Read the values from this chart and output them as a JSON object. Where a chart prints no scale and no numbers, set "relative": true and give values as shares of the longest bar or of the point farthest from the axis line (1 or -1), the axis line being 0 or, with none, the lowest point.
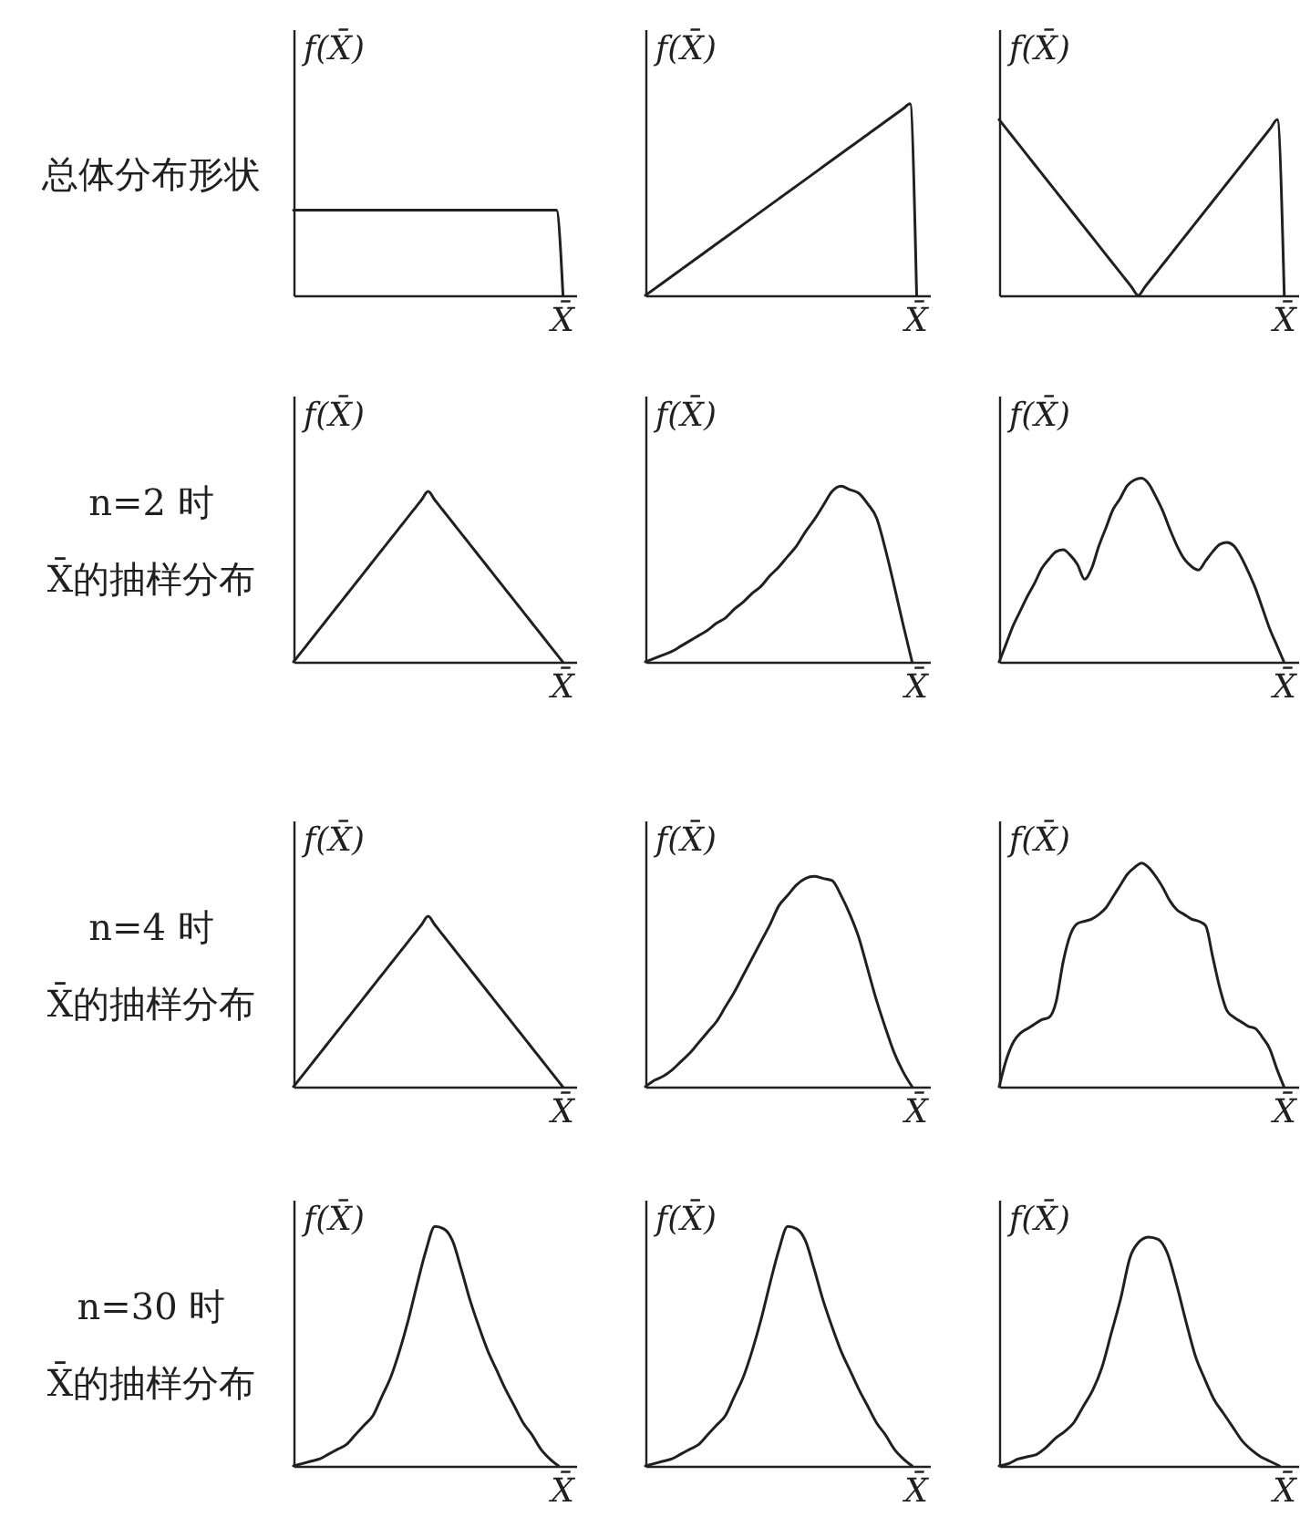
{
  "chart_data": [
    {
      "type": "line",
      "relative": true,
      "categories": [
        null,
        null,
        null,
        null,
        null,
        null,
        null,
        null,
        null,
        null,
        null,
        null,
        null,
        null,
        null,
        null,
        null,
        null,
        null,
        null,
        null,
        null,
        null,
        null,
        null,
        null,
        null,
        null,
        null,
        null,
        null,
        null,
        null,
        null,
        null,
        null,
        null,
        null,
        null,
        null,
        null,
        null
      ],
      "values": [
        1,
        1,
        1,
        1,
        1,
        1,
        1,
        1,
        1,
        1,
        1,
        1,
        1,
        1,
        1,
        1,
        1,
        1,
        1,
        1,
        1,
        1,
        1,
        1,
        1,
        1,
        1,
        1,
        1,
        1,
        1,
        1,
        1,
        1,
        1,
        1,
        1,
        1,
        1,
        1,
        1,
        0
      ],
      "color": "#231f20",
      "ylabel": "f(X̄)",
      "xlabel": "X̄",
      "tick_labels": false,
      "annotations": [
        "总体分布形状"
      ]
    },
    {
      "type": "line",
      "relative": true,
      "categories": [
        null,
        null,
        null,
        null,
        null,
        null,
        null,
        null,
        null,
        null,
        null,
        null,
        null,
        null,
        null,
        null,
        null,
        null,
        null,
        null,
        null,
        null,
        null,
        null,
        null,
        null,
        null,
        null,
        null,
        null,
        null,
        null,
        null,
        null,
        null,
        null,
        null,
        null,
        null,
        null,
        null,
        null
      ],
      "values": [
        0,
        0.025,
        0.05,
        0.075,
        0.1,
        0.125,
        0.15,
        0.175,
        0.2,
        0.225,
        0.25,
        0.275,
        0.3,
        0.325,
        0.35,
        0.375,
        0.4,
        0.425,
        0.45,
        0.475,
        0.5,
        0.525,
        0.55,
        0.575,
        0.6,
        0.625,
        0.65,
        0.675,
        0.7,
        0.725,
        0.75,
        0.775,
        0.8,
        0.825,
        0.85,
        0.875,
        0.9,
        0.925,
        0.95,
        0.975,
        1,
        0
      ],
      "color": "#231f20",
      "ylabel": "f(X̄)",
      "xlabel": "X̄",
      "tick_labels": false
    },
    {
      "type": "line",
      "relative": true,
      "categories": [
        null,
        null,
        null,
        null,
        null,
        null,
        null,
        null,
        null,
        null,
        null,
        null,
        null,
        null,
        null,
        null,
        null,
        null,
        null,
        null,
        null,
        null,
        null,
        null,
        null,
        null,
        null,
        null,
        null,
        null,
        null,
        null,
        null,
        null,
        null,
        null,
        null,
        null,
        null,
        null,
        null,
        null
      ],
      "values": [
        1,
        0.95,
        0.9,
        0.85,
        0.8,
        0.75,
        0.7,
        0.65,
        0.6,
        0.55,
        0.5,
        0.45,
        0.4,
        0.35,
        0.3,
        0.25,
        0.2,
        0.15,
        0.1,
        0.05,
        0,
        0.05,
        0.1,
        0.15,
        0.2,
        0.25,
        0.3,
        0.35,
        0.4,
        0.45,
        0.5,
        0.55,
        0.6,
        0.65,
        0.7,
        0.75,
        0.8,
        0.85,
        0.9,
        0.95,
        1,
        0
      ],
      "color": "#231f20",
      "ylabel": "f(X̄)",
      "xlabel": "X̄",
      "tick_labels": false
    },
    {
      "type": "line",
      "relative": true,
      "categories": [
        null,
        null,
        null,
        null,
        null,
        null,
        null,
        null,
        null,
        null,
        null,
        null,
        null,
        null,
        null,
        null,
        null,
        null,
        null,
        null,
        null,
        null,
        null,
        null,
        null,
        null,
        null,
        null,
        null,
        null,
        null,
        null,
        null,
        null,
        null,
        null,
        null,
        null,
        null,
        null,
        null
      ],
      "values": [
        0,
        0.05,
        0.1,
        0.15,
        0.2,
        0.25,
        0.3,
        0.35,
        0.4,
        0.45,
        0.5,
        0.55,
        0.6,
        0.65,
        0.7,
        0.75,
        0.8,
        0.85,
        0.9,
        0.95,
        1,
        0.95,
        0.9,
        0.85,
        0.8,
        0.75,
        0.7,
        0.65,
        0.6,
        0.55,
        0.5,
        0.45,
        0.4,
        0.35,
        0.3,
        0.25,
        0.2,
        0.15,
        0.1,
        0.05,
        0
      ],
      "color": "#231f20",
      "ylabel": "f(X̄)",
      "xlabel": "X̄",
      "tick_labels": false,
      "annotations": [
        "n=2 时",
        "X̄的抽样分布"
      ]
    },
    {
      "type": "line",
      "relative": true,
      "categories": [
        null,
        null,
        null,
        null,
        null,
        null,
        null,
        null,
        null,
        null,
        null,
        null,
        null,
        null,
        null,
        null,
        null,
        null,
        null,
        null,
        null,
        null,
        null,
        null,
        null,
        null,
        null,
        null,
        null,
        null,
        null
      ],
      "values": [
        0,
        0.02,
        0.04,
        0.06,
        0.09,
        0.12,
        0.15,
        0.18,
        0.22,
        0.25,
        0.3,
        0.34,
        0.39,
        0.43,
        0.49,
        0.54,
        0.6,
        0.66,
        0.74,
        0.81,
        0.89,
        0.97,
        1,
        0.98,
        0.96,
        0.9,
        0.82,
        0.64,
        0.43,
        0.21,
        0
      ],
      "color": "#231f20",
      "ylabel": "f(X̄)",
      "xlabel": "X̄",
      "tick_labels": false
    },
    {
      "type": "line",
      "relative": true,
      "categories": [
        null,
        null,
        null,
        null,
        null,
        null,
        null,
        null,
        null,
        null,
        null,
        null,
        null,
        null,
        null,
        null,
        null,
        null,
        null,
        null,
        null,
        null,
        null,
        null,
        null,
        null,
        null,
        null,
        null,
        null,
        null,
        null,
        null,
        null,
        null,
        null,
        null,
        null,
        null,
        null,
        null
      ],
      "values": [
        0,
        0.1,
        0.2,
        0.28,
        0.36,
        0.43,
        0.51,
        0.56,
        0.6,
        0.61,
        0.58,
        0.53,
        0.45,
        0.51,
        0.63,
        0.73,
        0.83,
        0.89,
        0.96,
        0.99,
        1,
        0.97,
        0.9,
        0.82,
        0.72,
        0.63,
        0.56,
        0.52,
        0.5,
        0.55,
        0.6,
        0.64,
        0.65,
        0.63,
        0.57,
        0.49,
        0.4,
        0.29,
        0.18,
        0.09,
        0
      ],
      "color": "#231f20",
      "ylabel": "f(X̄)",
      "xlabel": "X̄",
      "tick_labels": false
    },
    {
      "type": "line",
      "relative": true,
      "categories": [
        null,
        null,
        null,
        null,
        null,
        null,
        null,
        null,
        null,
        null,
        null,
        null,
        null,
        null,
        null,
        null,
        null,
        null,
        null,
        null,
        null,
        null,
        null,
        null,
        null,
        null,
        null,
        null,
        null,
        null,
        null,
        null,
        null,
        null,
        null,
        null,
        null,
        null,
        null,
        null,
        null
      ],
      "values": [
        0,
        0.05,
        0.1,
        0.15,
        0.2,
        0.25,
        0.3,
        0.35,
        0.4,
        0.45,
        0.5,
        0.55,
        0.6,
        0.65,
        0.7,
        0.75,
        0.8,
        0.85,
        0.9,
        0.95,
        1,
        0.95,
        0.9,
        0.85,
        0.8,
        0.75,
        0.7,
        0.65,
        0.6,
        0.55,
        0.5,
        0.45,
        0.4,
        0.35,
        0.3,
        0.25,
        0.2,
        0.15,
        0.1,
        0.05,
        0
      ],
      "color": "#231f20",
      "ylabel": "f(X̄)",
      "xlabel": "X̄",
      "tick_labels": false,
      "annotations": [
        "n=4 时",
        "X̄的抽样分布"
      ]
    },
    {
      "type": "line",
      "relative": true,
      "categories": [
        null,
        null,
        null,
        null,
        null,
        null,
        null,
        null,
        null,
        null,
        null,
        null,
        null,
        null,
        null,
        null,
        null,
        null,
        null,
        null,
        null,
        null,
        null,
        null,
        null,
        null,
        null,
        null,
        null,
        null,
        null
      ],
      "values": [
        0,
        0.03,
        0.05,
        0.08,
        0.12,
        0.16,
        0.21,
        0.26,
        0.31,
        0.38,
        0.45,
        0.53,
        0.61,
        0.69,
        0.77,
        0.86,
        0.91,
        0.96,
        0.99,
        1,
        0.99,
        0.98,
        0.91,
        0.82,
        0.71,
        0.56,
        0.41,
        0.28,
        0.16,
        0.07,
        0
      ],
      "color": "#231f20",
      "ylabel": "f(X̄)",
      "xlabel": "X̄",
      "tick_labels": false
    },
    {
      "type": "line",
      "relative": true,
      "categories": [
        null,
        null,
        null,
        null,
        null,
        null,
        null,
        null,
        null,
        null,
        null,
        null,
        null,
        null,
        null,
        null,
        null,
        null,
        null,
        null,
        null,
        null,
        null,
        null,
        null,
        null,
        null,
        null,
        null,
        null,
        null,
        null,
        null,
        null,
        null,
        null,
        null,
        null,
        null,
        null,
        null
      ],
      "values": [
        0,
        0.12,
        0.2,
        0.24,
        0.26,
        0.28,
        0.3,
        0.31,
        0.38,
        0.56,
        0.68,
        0.73,
        0.74,
        0.75,
        0.77,
        0.8,
        0.85,
        0.9,
        0.95,
        0.98,
        1,
        0.98,
        0.94,
        0.89,
        0.83,
        0.79,
        0.77,
        0.75,
        0.74,
        0.72,
        0.58,
        0.44,
        0.34,
        0.31,
        0.29,
        0.27,
        0.26,
        0.22,
        0.17,
        0.08,
        0
      ],
      "color": "#231f20",
      "ylabel": "f(X̄)",
      "xlabel": "X̄",
      "tick_labels": false
    },
    {
      "type": "line",
      "relative": true,
      "categories": [
        null,
        null,
        null,
        null,
        null,
        null,
        null,
        null,
        null,
        null,
        null,
        null,
        null,
        null,
        null,
        null,
        null,
        null,
        null,
        null,
        null,
        null,
        null,
        null,
        null,
        null,
        null,
        null,
        null,
        null,
        null
      ],
      "values": [
        0,
        0.01,
        0.02,
        0.03,
        0.05,
        0.07,
        0.09,
        0.13,
        0.17,
        0.21,
        0.29,
        0.37,
        0.48,
        0.61,
        0.76,
        0.9,
        1,
        0.99,
        0.94,
        0.82,
        0.69,
        0.58,
        0.48,
        0.4,
        0.32,
        0.25,
        0.18,
        0.13,
        0.07,
        0.03,
        0
      ],
      "color": "#231f20",
      "ylabel": "f(X̄)",
      "xlabel": "X̄",
      "tick_labels": false,
      "annotations": [
        "n=30 时",
        "X̄的抽样分布"
      ]
    },
    {
      "type": "line",
      "relative": true,
      "categories": [
        null,
        null,
        null,
        null,
        null,
        null,
        null,
        null,
        null,
        null,
        null,
        null,
        null,
        null,
        null,
        null,
        null,
        null,
        null,
        null,
        null,
        null,
        null,
        null,
        null,
        null,
        null,
        null,
        null,
        null,
        null
      ],
      "values": [
        0,
        0.01,
        0.02,
        0.03,
        0.05,
        0.07,
        0.09,
        0.13,
        0.17,
        0.21,
        0.29,
        0.37,
        0.48,
        0.61,
        0.76,
        0.9,
        1,
        0.99,
        0.94,
        0.82,
        0.69,
        0.58,
        0.48,
        0.4,
        0.32,
        0.25,
        0.18,
        0.13,
        0.07,
        0.03,
        0
      ],
      "color": "#231f20",
      "ylabel": "f(X̄)",
      "xlabel": "X̄",
      "tick_labels": false
    },
    {
      "type": "line",
      "relative": true,
      "categories": [
        null,
        null,
        null,
        null,
        null,
        null,
        null,
        null,
        null,
        null,
        null,
        null,
        null,
        null,
        null,
        null,
        null,
        null,
        null,
        null,
        null,
        null,
        null,
        null,
        null,
        null,
        null,
        null,
        null,
        null,
        null
      ],
      "values": [
        0,
        0.01,
        0.03,
        0.04,
        0.05,
        0.08,
        0.12,
        0.15,
        0.19,
        0.26,
        0.33,
        0.43,
        0.58,
        0.73,
        0.91,
        0.98,
        1,
        0.99,
        0.93,
        0.79,
        0.63,
        0.48,
        0.38,
        0.29,
        0.23,
        0.17,
        0.11,
        0.07,
        0.04,
        0.02,
        0
      ],
      "color": "#231f20",
      "ylabel": "f(X̄)",
      "xlabel": "X̄",
      "tick_labels": false
    }
  ]
}
